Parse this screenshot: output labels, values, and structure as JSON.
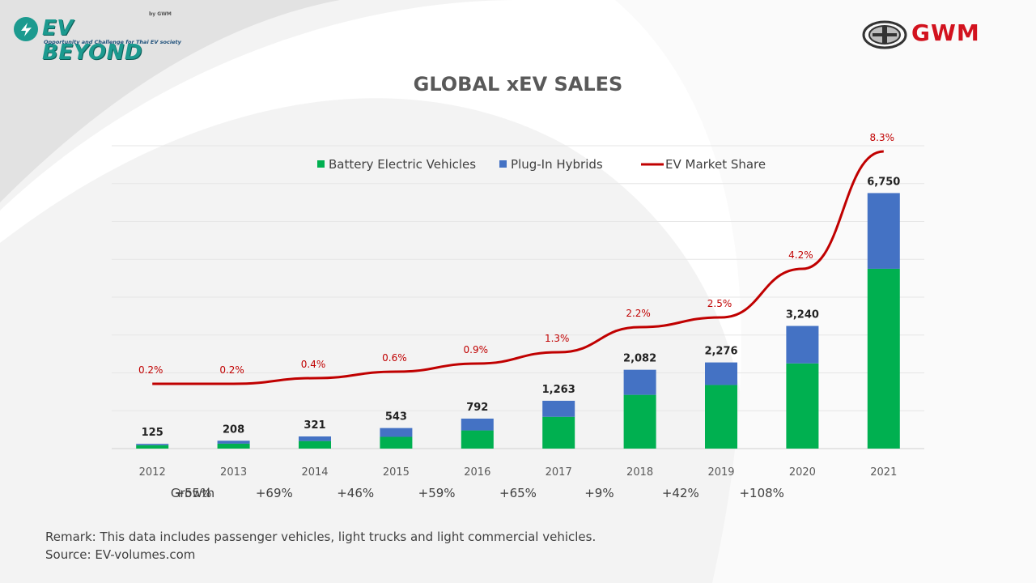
{
  "header": {
    "logo_left": {
      "title": "EV BEYOND",
      "by": "by GWM",
      "tagline": "Opportunity and Challenge for Thai EV society"
    },
    "logo_right": "GWM"
  },
  "chart_data": {
    "type": "bar",
    "stacked": true,
    "title": "GLOBAL xEV SALES",
    "categories": [
      "2012",
      "2013",
      "2014",
      "2015",
      "2016",
      "2017",
      "2018",
      "2019",
      "2020",
      "2021"
    ],
    "totals": [
      125,
      208,
      321,
      543,
      792,
      1263,
      2082,
      2276,
      3240,
      6750
    ],
    "totals_labels": [
      "125",
      "208",
      "321",
      "543",
      "792",
      "1,263",
      "2,082",
      "2,276",
      "3,240",
      "6,750"
    ],
    "series": [
      {
        "name": "Battery Electric Vehicles",
        "color": "#00b050",
        "values": [
          90,
          130,
          200,
          310,
          480,
          840,
          1420,
          1680,
          2250,
          4750
        ]
      },
      {
        "name": "Plug-In Hybrids",
        "color": "#4472c4",
        "values": [
          35,
          78,
          121,
          233,
          312,
          423,
          662,
          596,
          990,
          2000
        ]
      }
    ],
    "line_series": {
      "name": "EV Market Share",
      "color": "#c00000",
      "values": [
        0.2,
        0.2,
        0.4,
        0.6,
        0.9,
        1.3,
        2.2,
        2.5,
        4.2,
        8.3
      ],
      "labels": [
        "0.2%",
        "0.2%",
        "0.4%",
        "0.6%",
        "0.9%",
        "1.3%",
        "2.2%",
        "2.5%",
        "4.2%",
        "8.3%"
      ]
    },
    "ylim": [
      0,
      8000
    ],
    "share_lim": [
      0,
      8.3
    ],
    "grid": true,
    "legend_placement": "top-center",
    "growth_label": "Growth",
    "growth": [
      "+55%",
      "+69%",
      "+46%",
      "+59%",
      "+65%",
      "+9%",
      "+42%",
      "+108%"
    ]
  },
  "footer": {
    "remark": "Remark: This data includes passenger vehicles, light trucks and light commercial vehicles.",
    "source": "Source: EV-volumes.com"
  }
}
